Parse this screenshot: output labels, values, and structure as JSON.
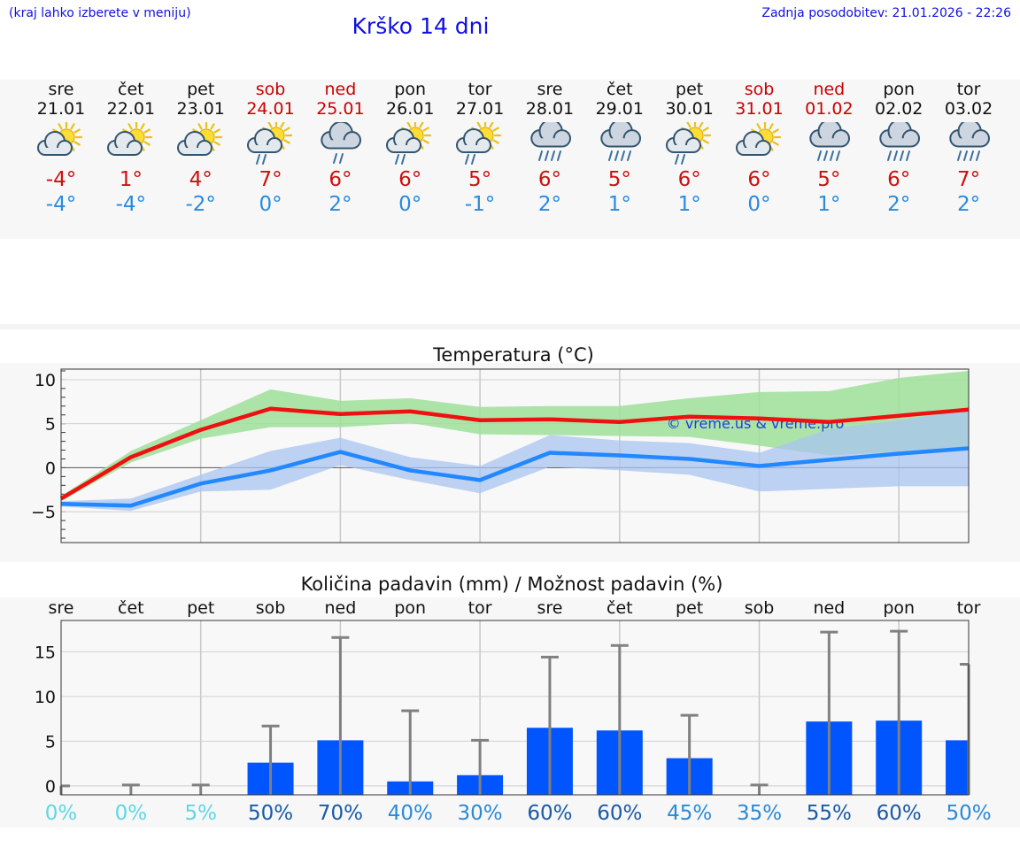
{
  "header": {
    "hint": "(kraj lahko izberete v meniju)",
    "title": "Krško 14 dni",
    "updated": "Zadnja posodobitev: 21.01.2026 - 22:26"
  },
  "days": [
    {
      "name": "sre",
      "date": "21.01",
      "weekend": false,
      "icon": "sun-cloud-icon",
      "tmax": "-4°",
      "tmin": "-4°"
    },
    {
      "name": "čet",
      "date": "22.01",
      "weekend": false,
      "icon": "sun-cloud-icon",
      "tmax": "1°",
      "tmin": "-4°"
    },
    {
      "name": "pet",
      "date": "23.01",
      "weekend": false,
      "icon": "sun-cloud-icon",
      "tmax": "4°",
      "tmin": "-2°"
    },
    {
      "name": "sob",
      "date": "24.01",
      "weekend": true,
      "icon": "sun-cloud-rain-icon",
      "tmax": "7°",
      "tmin": "0°"
    },
    {
      "name": "ned",
      "date": "25.01",
      "weekend": true,
      "icon": "cloud-rain-icon",
      "tmax": "6°",
      "tmin": "2°"
    },
    {
      "name": "pon",
      "date": "26.01",
      "weekend": false,
      "icon": "sun-cloud-rain-icon",
      "tmax": "6°",
      "tmin": "0°"
    },
    {
      "name": "tor",
      "date": "27.01",
      "weekend": false,
      "icon": "sun-cloud-rain-icon",
      "tmax": "5°",
      "tmin": "-1°"
    },
    {
      "name": "sre",
      "date": "28.01",
      "weekend": false,
      "icon": "cloud-heavy-rain-icon",
      "tmax": "6°",
      "tmin": "2°"
    },
    {
      "name": "čet",
      "date": "29.01",
      "weekend": false,
      "icon": "cloud-heavy-rain-icon",
      "tmax": "5°",
      "tmin": "1°"
    },
    {
      "name": "pet",
      "date": "30.01",
      "weekend": false,
      "icon": "sun-cloud-rain-icon",
      "tmax": "6°",
      "tmin": "1°"
    },
    {
      "name": "sob",
      "date": "31.01",
      "weekend": true,
      "icon": "sun-cloud-icon",
      "tmax": "6°",
      "tmin": "0°"
    },
    {
      "name": "ned",
      "date": "01.02",
      "weekend": true,
      "icon": "cloud-heavy-rain-icon",
      "tmax": "5°",
      "tmin": "1°"
    },
    {
      "name": "pon",
      "date": "02.02",
      "weekend": false,
      "icon": "cloud-heavy-rain-icon",
      "tmax": "6°",
      "tmin": "2°"
    },
    {
      "name": "tor",
      "date": "03.02",
      "weekend": false,
      "icon": "cloud-heavy-rain-icon",
      "tmax": "7°",
      "tmin": "2°"
    }
  ],
  "colors": {
    "max_line": "#ee1111",
    "max_band": "#9fe09a",
    "min_line": "#2288ff",
    "min_band": "#a9c4f2",
    "bar": "#0055ff",
    "whisker": "#808080"
  },
  "chart_data": [
    {
      "type": "line",
      "title": "Temperatura (°C)",
      "watermark": "© vreme.us & vreme.pro",
      "ylim": [
        -8.5,
        11.2
      ],
      "yticks": [
        -5,
        0,
        5,
        10
      ],
      "ytick_labels": [
        "−5",
        "0",
        "5",
        "10"
      ],
      "series": [
        {
          "name": "max",
          "values": [
            -3.5,
            1.2,
            4.3,
            6.7,
            6.1,
            6.4,
            5.4,
            5.5,
            5.2,
            5.8,
            5.6,
            5.2,
            5.9,
            6.6
          ],
          "band_low": [
            -3.8,
            0.6,
            3.3,
            4.6,
            4.6,
            5.1,
            3.8,
            3.7,
            3.6,
            3.5,
            2.5,
            1.4,
            1.8,
            2.0
          ],
          "band_high": [
            -3.2,
            1.9,
            5.4,
            8.9,
            7.6,
            7.9,
            6.9,
            7.0,
            7.0,
            7.9,
            8.6,
            8.7,
            10.2,
            11.0
          ]
        },
        {
          "name": "min",
          "values": [
            -4.1,
            -4.3,
            -1.8,
            -0.3,
            1.8,
            -0.3,
            -1.4,
            1.7,
            1.4,
            1.0,
            0.2,
            0.9,
            1.6,
            2.2
          ],
          "band_low": [
            -4.4,
            -4.9,
            -2.7,
            -2.5,
            0.3,
            -1.4,
            -2.9,
            0.1,
            -0.3,
            -0.8,
            -2.7,
            -2.4,
            -2.1,
            -2.1
          ],
          "band_high": [
            -3.8,
            -3.5,
            -0.8,
            1.9,
            3.4,
            1.2,
            0.2,
            3.7,
            3.1,
            2.8,
            1.7,
            4.4,
            5.4,
            6.6
          ]
        }
      ]
    },
    {
      "type": "bar",
      "title": "Količina padavin (mm) / Možnost padavin (%)",
      "categories": [
        "sre",
        "čet",
        "pet",
        "sob",
        "ned",
        "pon",
        "tor",
        "sre",
        "čet",
        "pet",
        "sob",
        "ned",
        "pon",
        "tor"
      ],
      "values": [
        0,
        0,
        0,
        2.6,
        5.1,
        0.5,
        1.2,
        6.5,
        6.2,
        3.1,
        0,
        7.2,
        7.3,
        5.1
      ],
      "whisker_high": [
        0,
        0.1,
        0.1,
        6.7,
        16.6,
        8.4,
        5.1,
        14.4,
        15.7,
        7.9,
        0.1,
        17.2,
        17.3,
        13.6
      ],
      "chance": [
        "0%",
        "0%",
        "5%",
        "50%",
        "70%",
        "40%",
        "30%",
        "60%",
        "60%",
        "45%",
        "35%",
        "55%",
        "60%",
        "50%"
      ],
      "chance_colors": [
        "#5ed7e6",
        "#5ed7e6",
        "#5ed7e6",
        "#1a5aa8",
        "#1a5aa8",
        "#2a8ad8",
        "#2a8ad8",
        "#1a5aa8",
        "#1a5aa8",
        "#2a8ad8",
        "#2a8ad8",
        "#1a5aa8",
        "#1a5aa8",
        "#2a8ad8"
      ],
      "ylim": [
        -1,
        18.5
      ],
      "yticks": [
        0,
        5,
        10,
        15
      ],
      "ytick_labels": [
        "0",
        "5",
        "10",
        "15"
      ]
    }
  ]
}
